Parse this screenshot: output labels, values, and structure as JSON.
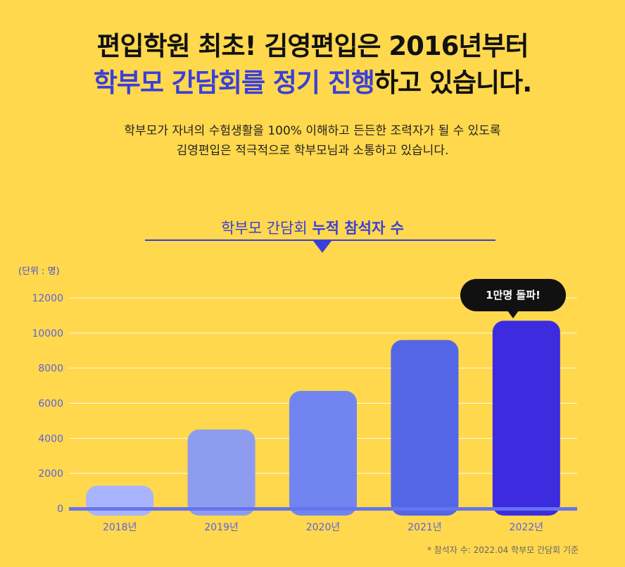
{
  "headline": {
    "line1": "편입학원 최초! 김영편입은 2016년부터",
    "line2_accent": "학부모 간담회를 정기 진행",
    "line2_rest": "하고 있습니다."
  },
  "subtext": {
    "line1": "학부모가 자녀의 수험생활을 100% 이해하고 든든한 조력자가 될 수 있도록",
    "line2": "김영편입은 적극적으로 학부모님과 소통하고 있습니다."
  },
  "chart_title": {
    "normal": "학부모 간담회 ",
    "bold": "누적 참석자 수"
  },
  "unit_label": "(단위 : 명)",
  "callout": "1만명 돌파!",
  "footnote": "* 참석자 수: 2022.04 학부모 간담회 기준",
  "colors": {
    "background": "#ffd84d",
    "accent": "#3a3fd9",
    "bars": [
      "#a9b4ff",
      "#8e9cf0",
      "#7185f0",
      "#5266e6",
      "#3d2be0"
    ]
  },
  "chart_data": {
    "type": "bar",
    "categories": [
      "2018년",
      "2019년",
      "2020년",
      "2021년",
      "2022년"
    ],
    "values": [
      1300,
      4500,
      6700,
      9600,
      10700
    ],
    "ylim": [
      0,
      12000
    ],
    "yticks": [
      0,
      2000,
      4000,
      6000,
      8000,
      10000,
      12000
    ],
    "grid": true,
    "ylabel": "(단위 : 명)"
  }
}
